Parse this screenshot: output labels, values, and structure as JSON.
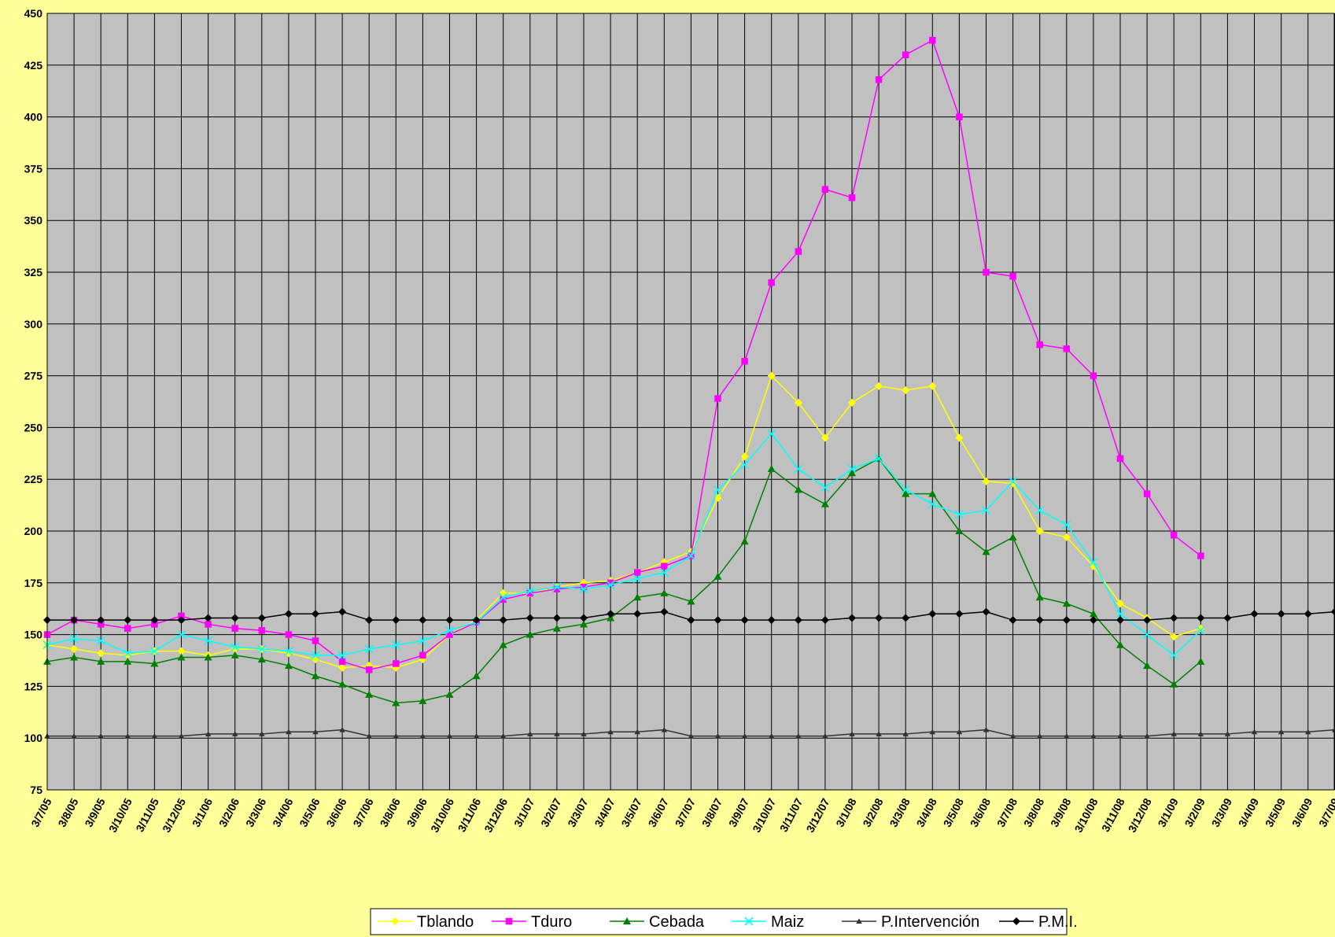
{
  "chart_data": {
    "type": "line",
    "categories": [
      "3/7/05",
      "3/8/05",
      "3/9/05",
      "3/10/05",
      "3/11/05",
      "3/12/05",
      "3/1/06",
      "3/2/06",
      "3/3/06",
      "3/4/06",
      "3/5/06",
      "3/6/06",
      "3/7/06",
      "3/8/06",
      "3/9/06",
      "3/10/06",
      "3/11/06",
      "3/12/06",
      "3/1/07",
      "3/2/07",
      "3/3/07",
      "3/4/07",
      "3/5/07",
      "3/6/07",
      "3/7/07",
      "3/8/07",
      "3/9/07",
      "3/10/07",
      "3/11/07",
      "3/12/07",
      "3/1/08",
      "3/2/08",
      "3/3/08",
      "3/4/08",
      "3/5/08",
      "3/6/08",
      "3/7/08",
      "3/8/08",
      "3/9/08",
      "3/10/08",
      "3/11/08",
      "3/12/08",
      "3/1/09",
      "3/2/09",
      "3/3/09",
      "3/4/09",
      "3/5/09",
      "3/6/09",
      "3/7/09"
    ],
    "series": [
      {
        "name": "Tblando",
        "color": "#ffff00",
        "marker": "diamond",
        "values": [
          145,
          143,
          141,
          140,
          142,
          142,
          140,
          143,
          143,
          141,
          138,
          134,
          135,
          134,
          138,
          150,
          157,
          170,
          170,
          173,
          175,
          176,
          180,
          185,
          190,
          216,
          236,
          275,
          262,
          245,
          262,
          270,
          268,
          270,
          245,
          224,
          223,
          200,
          197,
          183,
          165,
          158,
          149,
          153,
          null,
          null,
          null,
          null,
          null
        ]
      },
      {
        "name": "Tduro",
        "color": "#ff00ff",
        "marker": "square",
        "values": [
          150,
          157,
          155,
          153,
          155,
          159,
          155,
          153,
          152,
          150,
          147,
          137,
          133,
          136,
          140,
          150,
          156,
          167,
          170,
          172,
          173,
          175,
          180,
          183,
          188,
          264,
          282,
          320,
          335,
          365,
          361,
          418,
          430,
          437,
          400,
          325,
          323,
          290,
          288,
          275,
          235,
          218,
          198,
          188,
          null,
          null,
          null,
          null,
          null
        ]
      },
      {
        "name": "Cebada",
        "color": "#008000",
        "marker": "triangle",
        "values": [
          137,
          139,
          137,
          137,
          136,
          139,
          139,
          140,
          138,
          135,
          130,
          126,
          121,
          117,
          118,
          121,
          130,
          145,
          150,
          153,
          155,
          158,
          168,
          170,
          166,
          178,
          195,
          230,
          220,
          213,
          228,
          235,
          218,
          218,
          200,
          190,
          197,
          168,
          165,
          160,
          145,
          135,
          126,
          137,
          null,
          null,
          null,
          null,
          null
        ]
      },
      {
        "name": "Maiz",
        "color": "#00ffff",
        "marker": "x",
        "values": [
          145,
          148,
          147,
          141,
          142,
          150,
          147,
          144,
          143,
          142,
          140,
          140,
          143,
          145,
          147,
          152,
          156,
          168,
          171,
          173,
          172,
          174,
          177,
          180,
          188,
          220,
          232,
          247,
          230,
          221,
          230,
          235,
          220,
          213,
          208,
          210,
          224,
          210,
          203,
          185,
          160,
          150,
          140,
          152,
          null,
          null,
          null,
          null,
          null
        ]
      },
      {
        "name": "P.Intervención",
        "color": "#333333",
        "marker": "smalltriangle",
        "values": [
          101,
          101,
          101,
          101,
          101,
          101,
          102,
          102,
          102,
          103,
          103,
          104,
          101,
          101,
          101,
          101,
          101,
          101,
          102,
          102,
          102,
          103,
          103,
          104,
          101,
          101,
          101,
          101,
          101,
          101,
          102,
          102,
          102,
          103,
          103,
          104,
          101,
          101,
          101,
          101,
          101,
          101,
          102,
          102,
          102,
          103,
          103,
          103,
          104
        ]
      },
      {
        "name": "P.M.I.",
        "color": "#000000",
        "marker": "diamond",
        "values": [
          157,
          157,
          157,
          157,
          157,
          157,
          158,
          158,
          158,
          160,
          160,
          161,
          157,
          157,
          157,
          157,
          157,
          157,
          158,
          158,
          158,
          160,
          160,
          161,
          157,
          157,
          157,
          157,
          157,
          157,
          158,
          158,
          158,
          160,
          160,
          161,
          157,
          157,
          157,
          157,
          157,
          157,
          158,
          158,
          158,
          160,
          160,
          160,
          161
        ]
      }
    ],
    "ylim": [
      75,
      450
    ],
    "yticks": [
      75,
      100,
      125,
      150,
      175,
      200,
      225,
      250,
      275,
      300,
      325,
      350,
      375,
      400,
      425,
      450
    ],
    "grid": true,
    "legend": "bottom"
  }
}
